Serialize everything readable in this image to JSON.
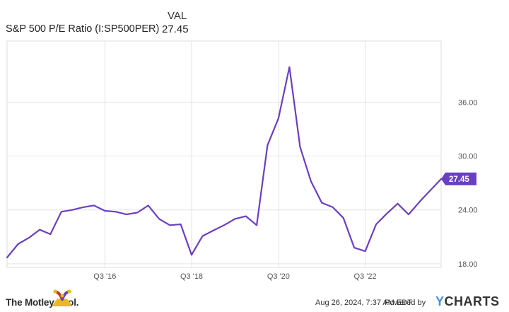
{
  "header": {
    "val_label": "VAL",
    "series_name": "S&P 500 P/E Ratio (I:SP500PER)",
    "series_value": "27.45"
  },
  "footer": {
    "brand": "The Motley Fool.",
    "date": "Aug 26, 2024, 7:37 AM EDT",
    "powered_by": "Powered by",
    "ycharts_logo": "YCHARTS"
  },
  "colors": {
    "line": "#6a3fc1",
    "grid": "#e4e4e4",
    "badge": "#6a3fc1",
    "plot_border": "#dddddd"
  },
  "chart_data": {
    "type": "line",
    "x_axis": "quarterly dates 2014–2024",
    "xticks": [
      {
        "date": "2016-09-30",
        "label": "Q3 '16"
      },
      {
        "date": "2018-09-30",
        "label": "Q3 '18"
      },
      {
        "date": "2020-09-30",
        "label": "Q3 '20"
      },
      {
        "date": "2022-09-30",
        "label": "Q3 '22"
      }
    ],
    "yticks": [
      {
        "value": 18,
        "label": "18.00"
      },
      {
        "value": 24,
        "label": "24.00"
      },
      {
        "value": 30,
        "label": "30.00"
      },
      {
        "value": 36,
        "label": "36.00"
      }
    ],
    "ylim": [
      17.6,
      42.8
    ],
    "xlim": [
      "2014-06-30",
      "2024-06-30"
    ],
    "grid": "horizontal and vertical",
    "series": [
      {
        "name": "S&P 500 P/E Ratio (I:SP500PER)",
        "last_value_label": "27.45",
        "points": [
          {
            "x": "2014-06-30",
            "y": 18.7
          },
          {
            "x": "2014-09-30",
            "y": 20.2
          },
          {
            "x": "2014-12-31",
            "y": 20.9
          },
          {
            "x": "2015-03-31",
            "y": 21.8
          },
          {
            "x": "2015-06-30",
            "y": 21.3
          },
          {
            "x": "2015-09-30",
            "y": 23.8
          },
          {
            "x": "2015-12-31",
            "y": 24.0
          },
          {
            "x": "2016-03-31",
            "y": 24.3
          },
          {
            "x": "2016-06-30",
            "y": 24.5
          },
          {
            "x": "2016-09-30",
            "y": 23.9
          },
          {
            "x": "2016-12-31",
            "y": 23.8
          },
          {
            "x": "2017-03-31",
            "y": 23.5
          },
          {
            "x": "2017-06-30",
            "y": 23.7
          },
          {
            "x": "2017-09-30",
            "y": 24.5
          },
          {
            "x": "2017-12-31",
            "y": 23.0
          },
          {
            "x": "2018-03-31",
            "y": 22.3
          },
          {
            "x": "2018-06-30",
            "y": 22.4
          },
          {
            "x": "2018-09-30",
            "y": 19.0
          },
          {
            "x": "2018-12-31",
            "y": 21.1
          },
          {
            "x": "2019-03-31",
            "y": 21.7
          },
          {
            "x": "2019-06-30",
            "y": 22.3
          },
          {
            "x": "2019-09-30",
            "y": 23.0
          },
          {
            "x": "2019-12-31",
            "y": 23.3
          },
          {
            "x": "2020-03-31",
            "y": 22.3
          },
          {
            "x": "2020-06-30",
            "y": 31.2
          },
          {
            "x": "2020-09-30",
            "y": 34.2
          },
          {
            "x": "2020-12-31",
            "y": 39.9
          },
          {
            "x": "2021-03-31",
            "y": 31.0
          },
          {
            "x": "2021-06-30",
            "y": 27.2
          },
          {
            "x": "2021-09-30",
            "y": 24.8
          },
          {
            "x": "2021-12-31",
            "y": 24.3
          },
          {
            "x": "2022-03-31",
            "y": 23.1
          },
          {
            "x": "2022-06-30",
            "y": 19.8
          },
          {
            "x": "2022-09-30",
            "y": 19.4
          },
          {
            "x": "2022-12-31",
            "y": 22.4
          },
          {
            "x": "2023-03-31",
            "y": 23.6
          },
          {
            "x": "2023-06-30",
            "y": 24.7
          },
          {
            "x": "2023-09-30",
            "y": 23.5
          },
          {
            "x": "2023-12-31",
            "y": 24.9
          },
          {
            "x": "2024-06-30",
            "y": 27.45
          }
        ]
      }
    ]
  }
}
